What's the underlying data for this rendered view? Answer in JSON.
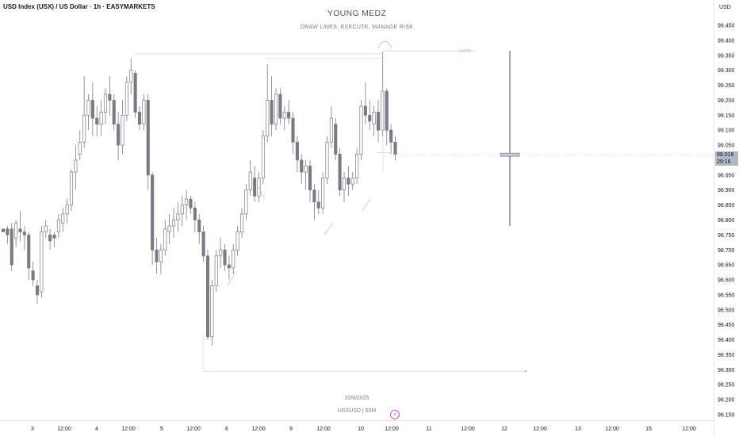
{
  "header": {
    "symbol_title": "USD Index (USX) / US Dollar · 1h · EASYMARKETS",
    "currency": "USD"
  },
  "watermark": {
    "title": "YOUNG MEDZ",
    "subtitle": "DRAW LINES, EXECUTE, MANAGE RISK",
    "date": "10/6/2025",
    "symbol": "USXUSD | 60M"
  },
  "annotations": {
    "hotw_label": "HOTW",
    "hotw_level": 99.365,
    "low_line_level": 98.295,
    "range_high": 99.365,
    "range_low": 98.78,
    "range_mid": 99.018
  },
  "current_price": {
    "price": "99.018",
    "countdown": "29:16"
  },
  "icons": {
    "flash": "lightning-icon",
    "flash_glyph": "⚡"
  },
  "colors": {
    "candle_up": "#ffffff",
    "candle_down": "#787b86",
    "wick": "#787b86",
    "hotw": "#c8cbf0",
    "badge": "#b2b8c8",
    "flash": "#c94dd8"
  },
  "chart_data": {
    "type": "candlestick",
    "ylim": [
      98.13,
      99.5
    ],
    "y_ticks": [
      "99.450",
      "99.400",
      "99.350",
      "99.300",
      "99.250",
      "99.200",
      "99.150",
      "99.100",
      "99.050",
      "99.000",
      "98.950",
      "98.900",
      "98.850",
      "98.800",
      "98.750",
      "98.700",
      "98.650",
      "98.600",
      "98.550",
      "98.500",
      "98.450",
      "98.400",
      "98.350",
      "98.300",
      "98.250",
      "98.200",
      "98.150"
    ],
    "x_ticks": [
      "3",
      "12:00",
      "4",
      "12:00",
      "5",
      "12:00",
      "6",
      "12:00",
      "9",
      "12:00",
      "10",
      "12:00",
      "11",
      "12:00",
      "12",
      "12:00",
      "13",
      "12:00",
      "15",
      "12:00"
    ],
    "candles": [
      [
        98.77,
        98.77,
        98.76,
        98.76
      ],
      [
        98.77,
        98.78,
        98.72,
        98.75
      ],
      [
        98.77,
        98.79,
        98.63,
        98.65
      ],
      [
        98.74,
        98.8,
        98.71,
        98.79
      ],
      [
        98.77,
        98.83,
        98.73,
        98.76
      ],
      [
        98.76,
        98.78,
        98.7,
        98.75
      ],
      [
        98.75,
        98.76,
        98.6,
        98.64
      ],
      [
        98.63,
        98.66,
        98.58,
        98.6
      ],
      [
        98.58,
        98.6,
        98.52,
        98.55
      ],
      [
        98.56,
        98.78,
        98.54,
        98.76
      ],
      [
        98.76,
        98.8,
        98.74,
        98.78
      ],
      [
        98.75,
        98.77,
        98.7,
        98.73
      ],
      [
        98.75,
        98.76,
        98.71,
        98.74
      ],
      [
        98.76,
        98.82,
        98.74,
        98.8
      ],
      [
        98.79,
        98.84,
        98.76,
        98.82
      ],
      [
        98.82,
        98.87,
        98.79,
        98.85
      ],
      [
        98.85,
        98.97,
        98.83,
        98.96
      ],
      [
        98.96,
        99.05,
        98.9,
        99.0
      ],
      [
        99.02,
        99.1,
        99.0,
        99.06
      ],
      [
        99.06,
        99.28,
        99.04,
        99.15
      ],
      [
        99.15,
        99.22,
        99.1,
        99.2
      ],
      [
        99.2,
        99.26,
        99.08,
        99.14
      ],
      [
        99.14,
        99.18,
        99.08,
        99.12
      ],
      [
        99.12,
        99.2,
        99.08,
        99.16
      ],
      [
        99.16,
        99.24,
        99.12,
        99.22
      ],
      [
        99.22,
        99.28,
        99.15,
        99.2
      ],
      [
        99.2,
        99.22,
        99.1,
        99.12
      ],
      [
        99.12,
        99.16,
        99.0,
        99.05
      ],
      [
        99.05,
        99.2,
        99.02,
        99.15
      ],
      [
        99.15,
        99.28,
        99.13,
        99.26
      ],
      [
        99.26,
        99.34,
        99.22,
        99.3
      ],
      [
        99.29,
        99.3,
        99.14,
        99.16
      ],
      [
        99.16,
        99.18,
        99.1,
        99.12
      ],
      [
        99.12,
        99.22,
        99.1,
        99.2
      ],
      [
        99.2,
        99.22,
        98.9,
        98.95
      ],
      [
        98.95,
        98.96,
        98.65,
        98.7
      ],
      [
        98.7,
        98.74,
        98.62,
        98.66
      ],
      [
        98.66,
        98.72,
        98.62,
        98.7
      ],
      [
        98.7,
        98.8,
        98.68,
        98.77
      ],
      [
        98.76,
        98.82,
        98.72,
        98.78
      ],
      [
        98.78,
        98.84,
        98.74,
        98.8
      ],
      [
        98.8,
        98.86,
        98.76,
        98.82
      ],
      [
        98.82,
        98.88,
        98.78,
        98.85
      ],
      [
        98.85,
        98.9,
        98.8,
        98.87
      ],
      [
        98.87,
        98.88,
        98.82,
        98.84
      ],
      [
        98.84,
        98.86,
        98.76,
        98.8
      ],
      [
        98.8,
        98.82,
        98.72,
        98.76
      ],
      [
        98.76,
        98.78,
        98.66,
        98.68
      ],
      [
        98.68,
        98.7,
        98.4,
        98.41
      ],
      [
        98.41,
        98.6,
        98.38,
        98.58
      ],
      [
        98.58,
        98.7,
        98.56,
        98.68
      ],
      [
        98.68,
        98.74,
        98.64,
        98.7
      ],
      [
        98.7,
        98.72,
        98.63,
        98.65
      ],
      [
        98.65,
        98.68,
        98.6,
        98.64
      ],
      [
        98.64,
        98.72,
        98.62,
        98.7
      ],
      [
        98.7,
        98.78,
        98.68,
        98.76
      ],
      [
        98.76,
        98.84,
        98.74,
        98.82
      ],
      [
        98.82,
        98.92,
        98.8,
        98.9
      ],
      [
        98.9,
        99.0,
        98.88,
        98.96
      ],
      [
        98.94,
        98.98,
        98.86,
        98.88
      ],
      [
        98.88,
        98.96,
        98.86,
        98.94
      ],
      [
        98.94,
        99.1,
        98.92,
        99.08
      ],
      [
        99.08,
        99.32,
        99.06,
        99.2
      ],
      [
        99.2,
        99.28,
        99.08,
        99.12
      ],
      [
        99.12,
        99.24,
        99.1,
        99.22
      ],
      [
        99.22,
        99.24,
        99.12,
        99.14
      ],
      [
        99.14,
        99.18,
        99.1,
        99.16
      ],
      [
        99.16,
        99.2,
        99.12,
        99.14
      ],
      [
        99.14,
        99.16,
        99.02,
        99.06
      ],
      [
        99.06,
        99.08,
        98.96,
        99.0
      ],
      [
        99.0,
        99.02,
        98.92,
        98.96
      ],
      [
        98.96,
        99.0,
        98.9,
        98.98
      ],
      [
        98.98,
        99.0,
        98.86,
        98.9
      ],
      [
        98.9,
        98.92,
        98.8,
        98.86
      ],
      [
        98.86,
        98.9,
        98.82,
        98.84
      ],
      [
        98.84,
        98.96,
        98.82,
        98.94
      ],
      [
        98.94,
        99.08,
        98.92,
        99.06
      ],
      [
        99.06,
        99.18,
        99.04,
        99.14
      ],
      [
        99.12,
        99.14,
        99.0,
        99.02
      ],
      [
        99.02,
        99.04,
        98.88,
        98.9
      ],
      [
        98.9,
        98.96,
        98.86,
        98.94
      ],
      [
        98.94,
        98.98,
        98.88,
        98.92
      ],
      [
        98.92,
        98.96,
        98.9,
        98.94
      ],
      [
        98.94,
        99.04,
        98.92,
        99.02
      ],
      [
        99.02,
        99.2,
        99.0,
        99.18
      ],
      [
        99.18,
        99.26,
        99.12,
        99.15
      ],
      [
        99.15,
        99.2,
        99.1,
        99.13
      ],
      [
        99.12,
        99.18,
        99.08,
        99.16
      ],
      [
        99.16,
        99.2,
        99.06,
        99.1
      ],
      [
        99.1,
        99.36,
        99.08,
        99.23
      ],
      [
        99.23,
        99.24,
        99.05,
        99.1
      ],
      [
        99.1,
        99.12,
        99.02,
        99.06
      ],
      [
        99.06,
        99.08,
        99.0,
        99.02
      ]
    ]
  }
}
